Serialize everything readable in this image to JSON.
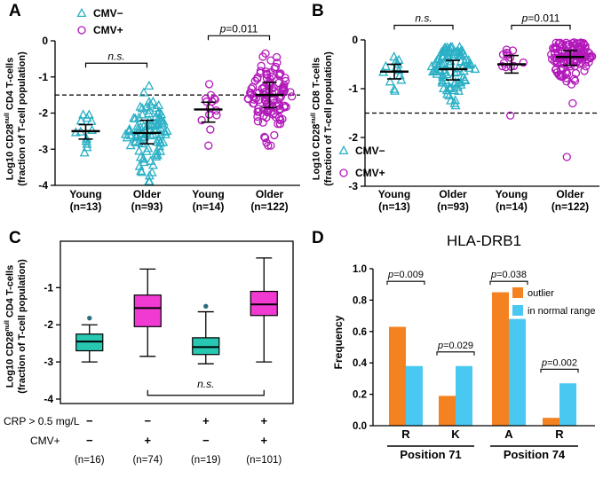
{
  "colors": {
    "cmv_neg": "#2ab0c5",
    "cmv_pos": "#b318ba",
    "box_teal": "#27c7b2",
    "box_magenta": "#f03ad2",
    "bar_orange": "#f58220",
    "bar_cyan": "#49c8f2",
    "outlier_dot": "#2b6f7e",
    "axis": "#000000"
  },
  "panels": {
    "A": {
      "letter": "A",
      "ylabel": {
        "prefix": "Log10 CD28",
        "sup": "null",
        "suffix": " CD4  T-cells",
        "line2": "(fraction of T-cell population)"
      }
    },
    "B": {
      "letter": "B",
      "ylabel": {
        "prefix": "Log10 CD28",
        "sup": "null",
        "suffix": " CD8  T-cells",
        "line2": "(fraction of T-cell population)"
      }
    },
    "C": {
      "letter": "C",
      "ylabel": {
        "prefix": "Log10 CD28",
        "sup": "null",
        "suffix": " CD4  T-cells",
        "line2": "(fraction of T-cell population)"
      }
    },
    "D": {
      "letter": "D",
      "title": "HLA-DRB1",
      "ylabel": "Frequency"
    }
  },
  "chart_data": [
    {
      "id": "A",
      "type": "scatter",
      "ylabel": "Log10 CD28null CD4 T-cells (fraction of T-cell population)",
      "ylim": [
        -4,
        0
      ],
      "yticks": [
        0,
        -1,
        -2,
        -3,
        -4
      ],
      "dashed_line_y": -1.5,
      "x_categories": [
        "Young (n=13)",
        "Older (n=93)",
        "Young (n=14)",
        "Older (n=122)"
      ],
      "groups": [
        {
          "label": "Young",
          "n": 13,
          "cmv": "CMV−",
          "marker": "triangle",
          "color_key": "cmv_neg",
          "median": -2.5,
          "q1": -2.72,
          "q3": -2.32,
          "min": -3.1,
          "max": -2.05
        },
        {
          "label": "Older",
          "n": 93,
          "cmv": "CMV−",
          "marker": "triangle",
          "color_key": "cmv_neg",
          "median": -2.55,
          "q1": -2.85,
          "q3": -2.2,
          "min": -3.9,
          "max": -1.25
        },
        {
          "label": "Young",
          "n": 14,
          "cmv": "CMV+",
          "marker": "circle",
          "color_key": "cmv_pos",
          "median": -1.9,
          "q1": -2.25,
          "q3": -1.7,
          "min": -2.9,
          "max": -1.2
        },
        {
          "label": "Older",
          "n": 122,
          "cmv": "CMV+",
          "marker": "circle",
          "color_key": "cmv_pos",
          "median": -1.5,
          "q1": -1.85,
          "q3": -1.15,
          "min": -2.9,
          "max": -0.35
        }
      ],
      "annotations": [
        {
          "text": "n.s.",
          "between": [
            0,
            1
          ],
          "y": -0.62
        },
        {
          "text": "p=0.011",
          "between": [
            2,
            3
          ],
          "y": 0.14
        }
      ],
      "legend": {
        "items": [
          {
            "marker": "triangle",
            "color_key": "cmv_neg",
            "label": "CMV−"
          },
          {
            "marker": "circle",
            "color_key": "cmv_pos",
            "label": "CMV+"
          }
        ]
      }
    },
    {
      "id": "B",
      "type": "scatter",
      "ylabel": "Log10 CD28null CD8 T-cells (fraction of T-cell population)",
      "ylim": [
        -3,
        0
      ],
      "yticks": [
        0,
        -1,
        -2,
        -3
      ],
      "dashed_line_y": -1.5,
      "x_categories": [
        "Young (n=13)",
        "Older (n=93)",
        "Young (n=14)",
        "Older (n=122)"
      ],
      "groups": [
        {
          "label": "Young",
          "n": 13,
          "cmv": "CMV−",
          "marker": "triangle",
          "color_key": "cmv_neg",
          "median": -0.65,
          "q1": -0.8,
          "q3": -0.5,
          "min": -1.05,
          "max": -0.35
        },
        {
          "label": "Older",
          "n": 93,
          "cmv": "CMV−",
          "marker": "triangle",
          "color_key": "cmv_neg",
          "median": -0.6,
          "q1": -0.82,
          "q3": -0.42,
          "min": -1.35,
          "max": -0.15
        },
        {
          "label": "Young",
          "n": 14,
          "cmv": "CMV+",
          "marker": "circle",
          "color_key": "cmv_pos",
          "median": -0.5,
          "q1": -0.68,
          "q3": -0.32,
          "min": -1.55,
          "max": -0.2
        },
        {
          "label": "Older",
          "n": 122,
          "cmv": "CMV+",
          "marker": "circle",
          "color_key": "cmv_pos",
          "median": -0.35,
          "q1": -0.52,
          "q3": -0.22,
          "min": -1.3,
          "max": -0.05,
          "outliers": [
            -2.4
          ]
        }
      ],
      "annotations": [
        {
          "text": "n.s.",
          "between": [
            0,
            1
          ],
          "y": 0.3
        },
        {
          "text": "p=0.011",
          "between": [
            2,
            3
          ],
          "y": 0.3
        }
      ],
      "legend": {
        "items": [
          {
            "marker": "triangle",
            "color_key": "cmv_neg",
            "label": "CMV−"
          },
          {
            "marker": "circle",
            "color_key": "cmv_pos",
            "label": "CMV+"
          }
        ]
      }
    },
    {
      "id": "C",
      "type": "box",
      "ylabel": "Log10 CD28null CD4 T-cells (fraction of T-cell population)",
      "ylim": [
        -4.12,
        0.25
      ],
      "yticks": [
        -1,
        -2,
        -3,
        -4
      ],
      "rows": [
        {
          "label": "CRP > 0.5 mg/L",
          "values": [
            "−",
            "−",
            "+",
            "+"
          ]
        },
        {
          "label": "CMV+",
          "values": [
            "−",
            "+",
            "−",
            "+"
          ]
        }
      ],
      "n_labels": [
        "(n=16)",
        "(n=74)",
        "(n=19)",
        "(n=101)"
      ],
      "groups": [
        {
          "n": 16,
          "color_key": "box_teal",
          "whisker_low": -3.0,
          "q1": -2.7,
          "median": -2.45,
          "q3": -2.25,
          "whisker_high": -2.0,
          "outliers": [
            -1.82
          ]
        },
        {
          "n": 74,
          "color_key": "box_magenta",
          "whisker_low": -2.85,
          "q1": -2.05,
          "median": -1.55,
          "q3": -1.2,
          "whisker_high": -0.5,
          "outliers": []
        },
        {
          "n": 19,
          "color_key": "box_teal",
          "whisker_low": -3.05,
          "q1": -2.8,
          "median": -2.6,
          "q3": -2.35,
          "whisker_high": -1.65,
          "outliers": [
            -1.5
          ]
        },
        {
          "n": 101,
          "color_key": "box_magenta",
          "whisker_low": -3.0,
          "q1": -1.75,
          "median": -1.45,
          "q3": -1.1,
          "whisker_high": -0.2,
          "outliers": []
        }
      ],
      "annotations": [
        {
          "text": "n.s.",
          "between": [
            1,
            3
          ],
          "y": -3.9
        }
      ]
    },
    {
      "id": "D",
      "type": "bar",
      "title": "HLA-DRB1",
      "ylabel": "Frequency",
      "ylim": [
        0,
        1.0
      ],
      "yticks": [
        0.0,
        0.2,
        0.4,
        0.6,
        0.8,
        1.0
      ],
      "categories": [
        "R",
        "K",
        "A",
        "R"
      ],
      "position_groups": [
        {
          "label": "Position 71",
          "span": [
            0,
            1
          ]
        },
        {
          "label": "Position 74",
          "span": [
            2,
            3
          ]
        }
      ],
      "series": [
        {
          "name": "outlier",
          "color_key": "bar_orange",
          "values": [
            0.63,
            0.19,
            0.85,
            0.05
          ]
        },
        {
          "name": "in normal range",
          "color_key": "bar_cyan",
          "values": [
            0.38,
            0.38,
            0.68,
            0.27
          ]
        }
      ],
      "p_brackets": [
        {
          "text": "p=0.009",
          "cat": 0,
          "y": 0.92
        },
        {
          "text": "p=0.029",
          "cat": 1,
          "y": 0.47
        },
        {
          "text": "p=0.038",
          "cat": 2,
          "y": 0.92
        },
        {
          "text": "p=0.002",
          "cat": 3,
          "y": 0.36
        }
      ],
      "legend": [
        {
          "label": "outlier",
          "color_key": "bar_orange"
        },
        {
          "label": "in normal range",
          "color_key": "bar_cyan"
        }
      ]
    }
  ]
}
